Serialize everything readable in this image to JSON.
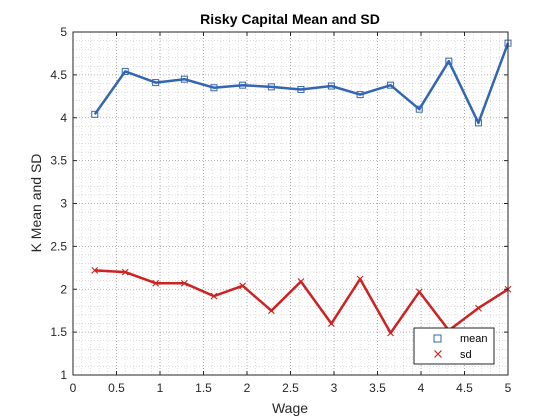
{
  "chart_data": {
    "type": "line",
    "title": "Risky Capital Mean and SD",
    "xlabel": "Wage",
    "ylabel": "K Mean and SD",
    "xlim": [
      0,
      5
    ],
    "ylim": [
      1,
      5
    ],
    "xticks": [
      0,
      0.5,
      1,
      1.5,
      2,
      2.5,
      3,
      3.5,
      4,
      4.5,
      5
    ],
    "xtick_labels": [
      "0",
      "0.5",
      "1",
      "1.5",
      "2",
      "2.5",
      "3",
      "3.5",
      "4",
      "4.5",
      "5"
    ],
    "yticks": [
      1,
      1.5,
      2,
      2.5,
      3,
      3.5,
      4,
      4.5,
      5
    ],
    "ytick_labels": [
      "1",
      "1.5",
      "2",
      "2.5",
      "3",
      "3.5",
      "4",
      "4.5",
      "5"
    ],
    "grid": "on (dotted, major and minor)",
    "legend_position": "bottom-right",
    "x": [
      0.25,
      0.6,
      0.95,
      1.28,
      1.62,
      1.95,
      2.28,
      2.62,
      2.97,
      3.3,
      3.65,
      3.98,
      4.32,
      4.66,
      5.0
    ],
    "series": [
      {
        "name": "mean",
        "color": "#3366b2",
        "marker": "square",
        "values": [
          4.04,
          4.54,
          4.41,
          4.45,
          4.35,
          4.38,
          4.36,
          4.33,
          4.37,
          4.27,
          4.38,
          4.1,
          4.66,
          3.94,
          4.87
        ]
      },
      {
        "name": "sd",
        "color": "#cc2222",
        "marker": "x",
        "values": [
          2.22,
          2.2,
          2.07,
          2.07,
          1.92,
          2.04,
          1.75,
          2.09,
          1.6,
          2.12,
          1.49,
          1.97,
          1.52,
          1.78,
          2.0
        ]
      }
    ]
  }
}
